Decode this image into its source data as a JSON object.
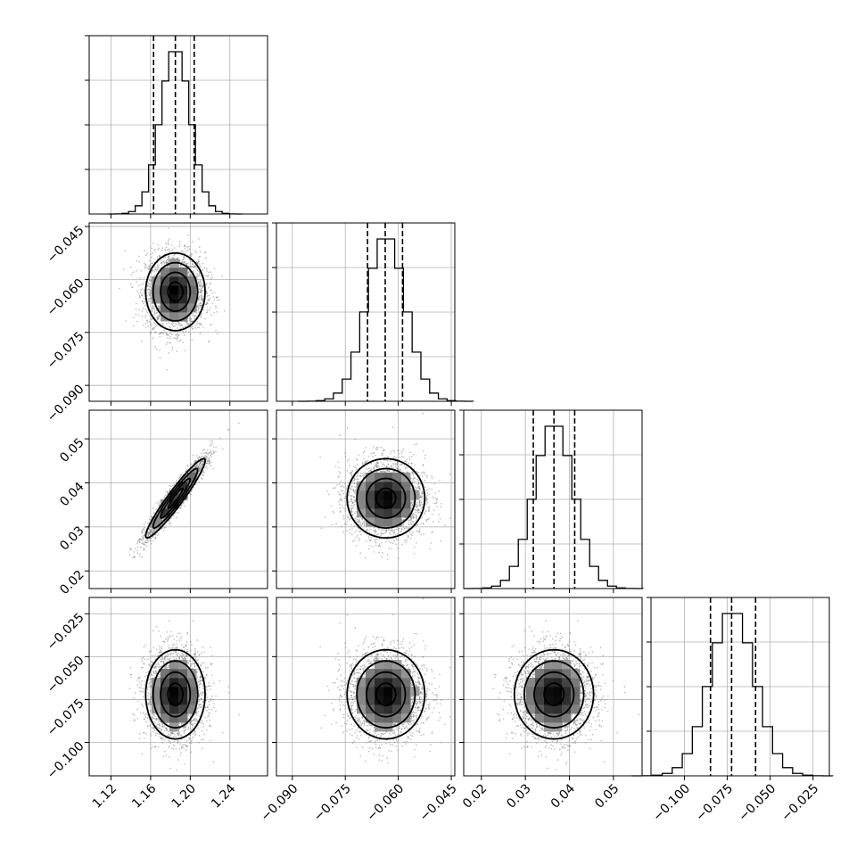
{
  "chart_data": {
    "type": "corner",
    "dims": [
      {
        "mean": 1.185,
        "sd": 0.015,
        "xlim": [
          1.098,
          1.278
        ],
        "xticks": [
          "1.12",
          "1.16",
          "1.20",
          "1.24"
        ],
        "xtick_values": [
          1.12,
          1.16,
          1.2,
          1.24
        ],
        "yticks": [],
        "quantiles": [
          1.163,
          1.185,
          1.204
        ]
      },
      {
        "mean": -0.0635,
        "sd": 0.0055,
        "xlim": [
          -0.0945,
          -0.044
        ],
        "xticks": [
          "−0.090",
          "−0.075",
          "−0.060",
          "−0.045"
        ],
        "xtick_values": [
          -0.09,
          -0.075,
          -0.06,
          -0.045
        ],
        "yticks": [
          "−0.045",
          "−0.060",
          "−0.075",
          "−0.090"
        ],
        "ytick_values": [
          -0.045,
          -0.06,
          -0.075,
          -0.09
        ],
        "quantiles": [
          -0.0687,
          -0.0637,
          -0.0588
        ]
      },
      {
        "mean": 0.0365,
        "sd": 0.0045,
        "xlim": [
          0.016,
          0.0565
        ],
        "xticks": [
          "0.02",
          "0.03",
          "0.04",
          "0.05"
        ],
        "xtick_values": [
          0.02,
          0.03,
          0.04,
          0.05
        ],
        "yticks": [
          "0.05",
          "0.04",
          "0.03",
          "0.02"
        ],
        "ytick_values": [
          0.05,
          0.04,
          0.03,
          0.02
        ],
        "quantiles": [
          0.0318,
          0.0365,
          0.0412
        ]
      },
      {
        "mean": -0.072,
        "sd": 0.013,
        "xlim": [
          -0.1195,
          -0.0155
        ],
        "xticks": [
          "−0.100",
          "−0.075",
          "−0.050",
          "−0.025"
        ],
        "xtick_values": [
          -0.1,
          -0.075,
          -0.05,
          -0.025
        ],
        "yticks": [
          "−0.025",
          "−0.050",
          "−0.075",
          "−0.100"
        ],
        "ytick_values": [
          -0.025,
          -0.05,
          -0.075,
          -0.1
        ],
        "quantiles": [
          -0.0848,
          -0.0725,
          -0.0585
        ]
      }
    ],
    "correlations": [
      [
        1,
        0,
        0.95,
        0
      ],
      [
        0,
        1,
        0,
        0
      ],
      [
        0.95,
        0,
        1,
        0
      ],
      [
        0,
        0,
        0,
        1
      ]
    ],
    "histogram_bins": 20,
    "contour_levels": [
      "0.5-sigma",
      "1-sigma",
      "1.5-sigma",
      "2-sigma"
    ],
    "grid": true,
    "colors": {
      "frame": "#000000",
      "grid": "#b0b0b0",
      "points": "#808080",
      "density_max": "#000000"
    }
  }
}
